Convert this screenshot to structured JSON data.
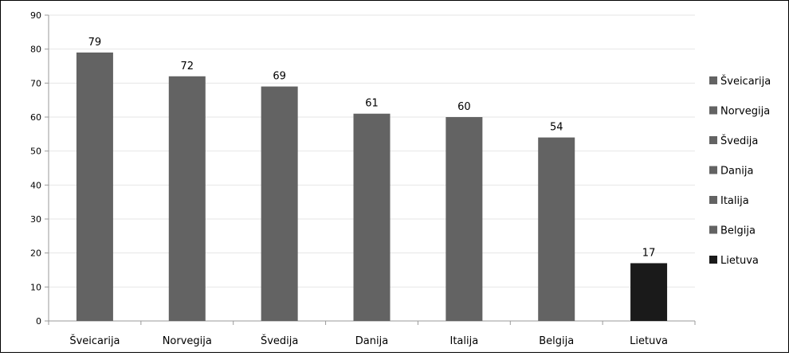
{
  "chart_data": {
    "type": "bar",
    "categories": [
      "Šveicarija",
      "Norvegija",
      "Švedija",
      "Danija",
      "Italija",
      "Belgija",
      "Lietuva"
    ],
    "values": [
      79,
      72,
      69,
      61,
      60,
      54,
      17
    ],
    "colors": [
      "#636363",
      "#636363",
      "#636363",
      "#636363",
      "#636363",
      "#636363",
      "#1a1a1a"
    ],
    "ylim": [
      0,
      90
    ],
    "yticks": [
      0,
      10,
      20,
      30,
      40,
      50,
      60,
      70,
      80,
      90
    ],
    "grid": true,
    "legend_position": "right",
    "legend": [
      {
        "label": "Šveicarija",
        "color": "#636363"
      },
      {
        "label": "Norvegija",
        "color": "#636363"
      },
      {
        "label": "Švedija",
        "color": "#636363"
      },
      {
        "label": "Danija",
        "color": "#636363"
      },
      {
        "label": "Italija",
        "color": "#636363"
      },
      {
        "label": "Belgija",
        "color": "#636363"
      },
      {
        "label": "Lietuva",
        "color": "#1a1a1a"
      }
    ],
    "gridline_color": "#e6e6e6",
    "axis_color": "#9a9a9a"
  }
}
